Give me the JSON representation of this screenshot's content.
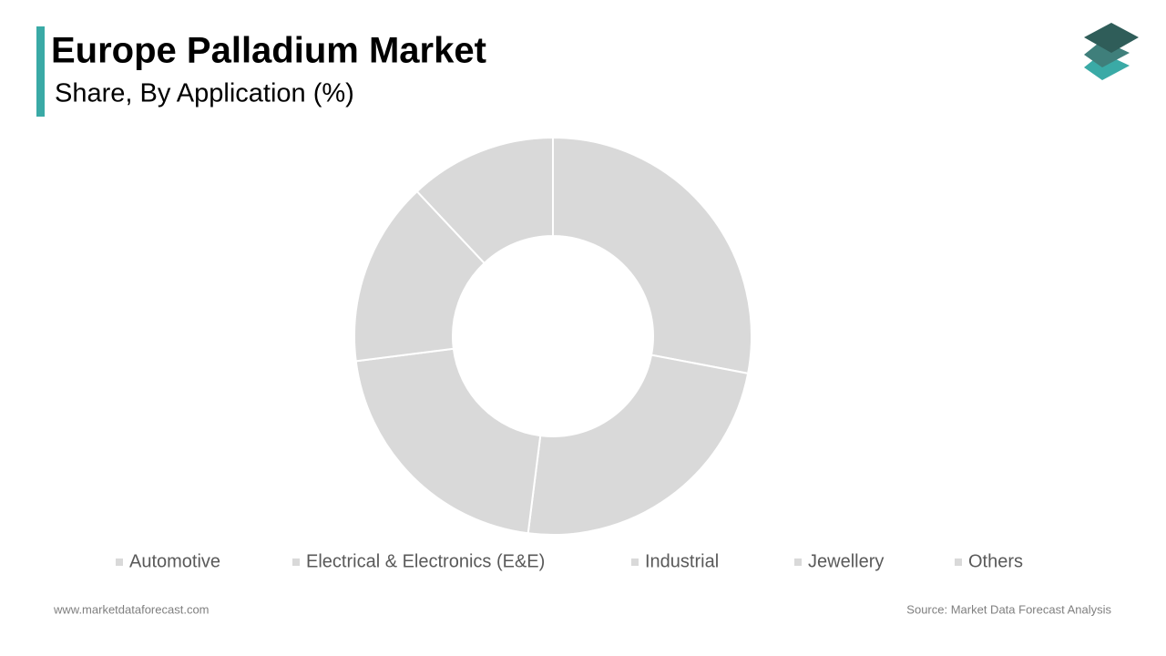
{
  "chart_data": {
    "type": "donut",
    "title": "Europe Palladium Market",
    "subtitle": "Share, By Application (%)",
    "categories": [
      "Automotive",
      "Electrical & Electronics (E&E)",
      "Industrial",
      "Jewellery",
      "Others"
    ],
    "values": [
      28,
      24,
      21,
      15,
      12
    ],
    "colors": [
      "#d9d9d9",
      "#d9d9d9",
      "#d9d9d9",
      "#d9d9d9",
      "#d9d9d9"
    ],
    "legend": "bottom"
  },
  "footer": {
    "website": "www.marketdataforecast.com",
    "source": "Source: Market Data Forecast Analysis"
  }
}
